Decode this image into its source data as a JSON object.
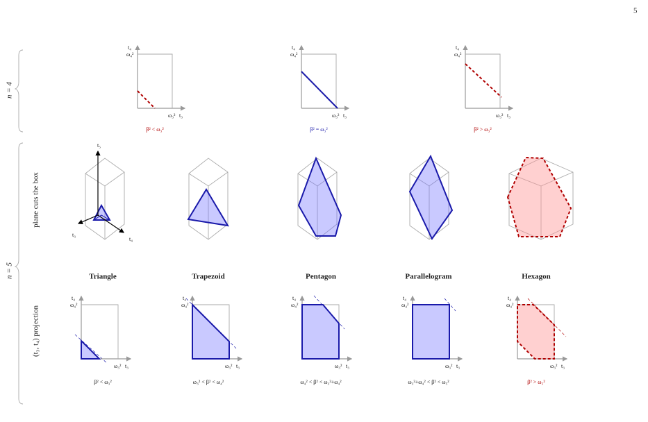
{
  "page_number": "5",
  "rows": {
    "n4": "n = 4",
    "n5": "n = 5"
  },
  "row_labels": {
    "plane": "plane cuts the box",
    "projection": "(t₃, t₄) projection"
  },
  "axis_labels": {
    "t3": "t₃",
    "t4": "t₄",
    "t5": "t₅",
    "w3": "ω₃²",
    "w4": "ω₄²"
  },
  "n4_panels": [
    {
      "condition": "β² < ω₃²"
    },
    {
      "condition": "β² = ω₃²"
    },
    {
      "condition": "β² > ω₃²"
    }
  ],
  "n5_panels": [
    {
      "name": "Triangle",
      "condition": "β² < ω₃²"
    },
    {
      "name": "Trapezoid",
      "condition": "ω₃² < β² < ω₄²"
    },
    {
      "name": "Pentagon",
      "condition": "ω₄² < β² < ω₃²+ω₄²"
    },
    {
      "name": "Parallelogram",
      "condition": "ω₃²+ω₄² < β² < ω₅²"
    },
    {
      "name": "Hexagon",
      "condition": "β² > ω₅²"
    }
  ]
}
